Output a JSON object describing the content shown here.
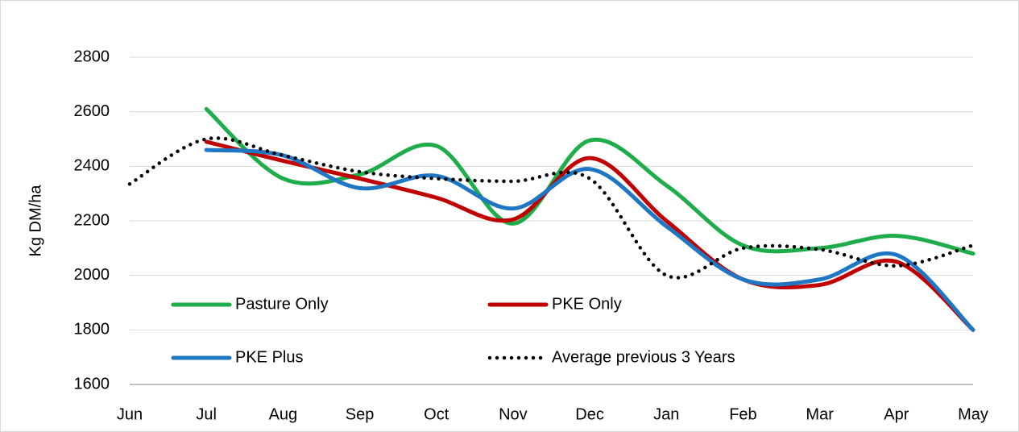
{
  "chart_data": {
    "type": "line",
    "y_label": "Kg DM/ha",
    "categories": [
      "Jun",
      "Jul",
      "Aug",
      "Sep",
      "Oct",
      "Nov",
      "Dec",
      "Jan",
      "Feb",
      "Mar",
      "Apr",
      "May"
    ],
    "series": [
      {
        "name": "Pasture Only",
        "color": "#1fad4b",
        "style": "solid",
        "values": [
          null,
          2610,
          2355,
          2370,
          2475,
          2190,
          2495,
          2330,
          2110,
          2100,
          2145,
          2080
        ]
      },
      {
        "name": "PKE Only",
        "color": "#c00000",
        "style": "solid",
        "values": [
          null,
          2490,
          2420,
          2355,
          2285,
          2205,
          2430,
          2200,
          1985,
          1965,
          2050,
          1800
        ]
      },
      {
        "name": "PKE Plus",
        "color": "#1f77c4",
        "style": "solid",
        "values": [
          null,
          2460,
          2440,
          2320,
          2365,
          2245,
          2390,
          2180,
          1985,
          1985,
          2075,
          1800
        ]
      },
      {
        "name": "Average previous 3 Years",
        "color": "#000000",
        "style": "dotted",
        "values": [
          2335,
          2500,
          2440,
          2380,
          2355,
          2345,
          2355,
          2000,
          2100,
          2095,
          2035,
          2110
        ]
      }
    ],
    "ylim": [
      1600,
      2800
    ],
    "yticks": [
      1600,
      1800,
      2000,
      2200,
      2400,
      2600,
      2800
    ],
    "grid": true,
    "smooth": true
  }
}
